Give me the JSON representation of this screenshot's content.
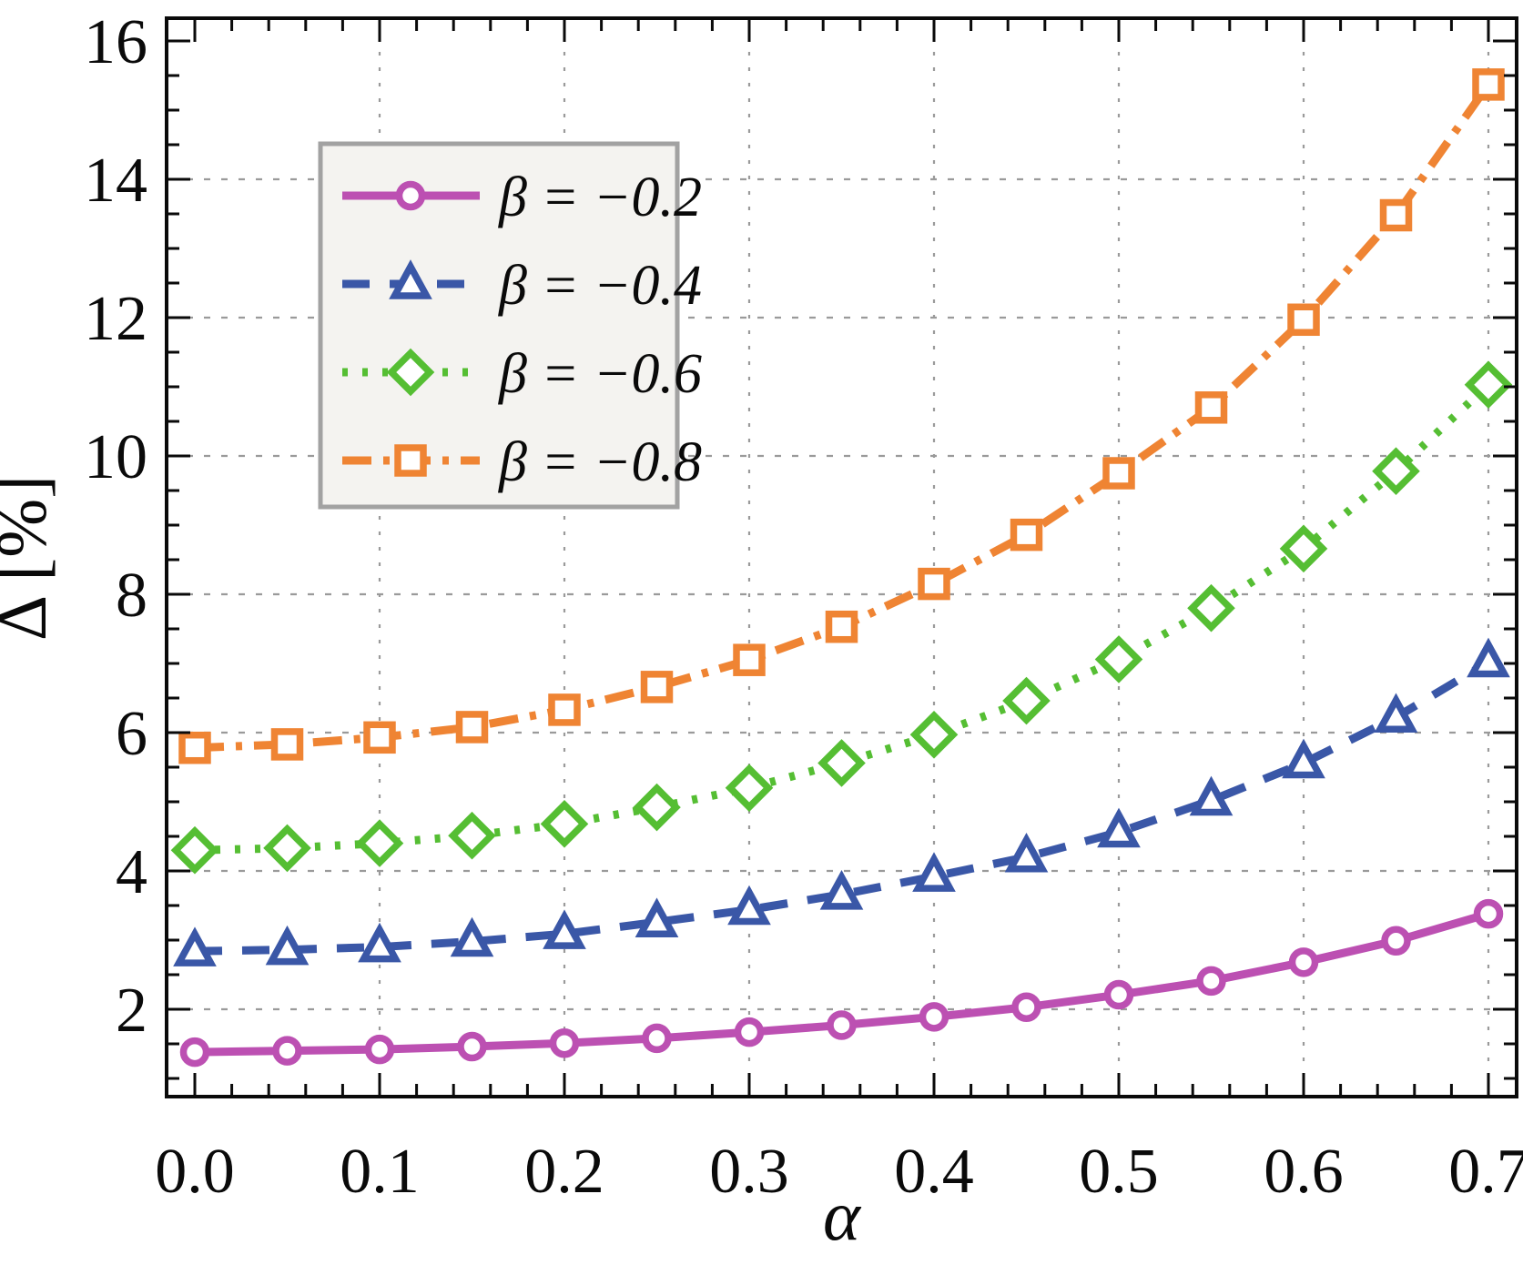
{
  "chart_data": {
    "type": "line",
    "title": "",
    "xlabel": "α",
    "ylabel": "Δ [%]",
    "x": [
      0.0,
      0.05,
      0.1,
      0.15,
      0.2,
      0.25,
      0.3,
      0.35,
      0.4,
      0.45,
      0.5,
      0.55,
      0.6,
      0.65,
      0.7
    ],
    "series": [
      {
        "name": "beta-neg-0.2",
        "label": "β = −0.2",
        "color": "#bc50b2",
        "line_style": "solid",
        "marker": "circle",
        "values": [
          1.38,
          1.4,
          1.42,
          1.46,
          1.51,
          1.58,
          1.67,
          1.77,
          1.89,
          2.03,
          2.21,
          2.41,
          2.68,
          2.99,
          3.38
        ]
      },
      {
        "name": "beta-neg-0.4",
        "label": "β = −0.4",
        "color": "#3a57a7",
        "line_style": "dashed",
        "marker": "triangle",
        "values": [
          2.84,
          2.86,
          2.9,
          2.98,
          3.09,
          3.26,
          3.44,
          3.66,
          3.92,
          4.2,
          4.56,
          5.02,
          5.56,
          6.22,
          7.02
        ]
      },
      {
        "name": "beta-neg-0.6",
        "label": "β = −0.6",
        "color": "#55be33",
        "line_style": "dotted",
        "marker": "diamond",
        "values": [
          4.3,
          4.33,
          4.4,
          4.51,
          4.68,
          4.92,
          5.2,
          5.56,
          5.97,
          6.46,
          7.06,
          7.8,
          8.66,
          9.78,
          11.03
        ]
      },
      {
        "name": "beta-neg-0.8",
        "label": "β = −0.8",
        "color": "#ef8433",
        "line_style": "dashdot",
        "marker": "square",
        "values": [
          5.78,
          5.83,
          5.93,
          6.08,
          6.33,
          6.66,
          7.05,
          7.53,
          8.15,
          8.86,
          9.75,
          10.7,
          11.97,
          13.48,
          15.37
        ]
      }
    ],
    "xlim": [
      -0.015,
      0.715
    ],
    "ylim": [
      0.74,
      16.33
    ],
    "x_ticks": {
      "major": [
        0.0,
        0.1,
        0.2,
        0.3,
        0.4,
        0.5,
        0.6,
        0.7
      ],
      "labels": [
        "0.0",
        "0.1",
        "0.2",
        "0.3",
        "0.4",
        "0.5",
        "0.6",
        "0.7"
      ],
      "minor_step": 0.02
    },
    "y_ticks": {
      "major": [
        2,
        4,
        6,
        8,
        10,
        12,
        14,
        16
      ],
      "labels": [
        "2",
        "4",
        "6",
        "8",
        "10",
        "12",
        "14",
        "16"
      ],
      "minor_step": 0.5
    },
    "grid": {
      "enabled": true,
      "x_values": [
        0.1,
        0.2,
        0.3,
        0.4,
        0.5,
        0.6,
        0.7
      ],
      "y_values": [
        2,
        4,
        6,
        8,
        10,
        12,
        14
      ],
      "color": "#9a9a9a"
    },
    "legend": {
      "position": "upper-left",
      "background": "#f4f3f0",
      "border_color": "#a2a2a2",
      "entries": [
        "β = −0.2",
        "β = −0.4",
        "β = −0.6",
        "β = −0.8"
      ]
    },
    "frame_color": "#0a0a0a",
    "marker_fill": "#ffffff"
  }
}
